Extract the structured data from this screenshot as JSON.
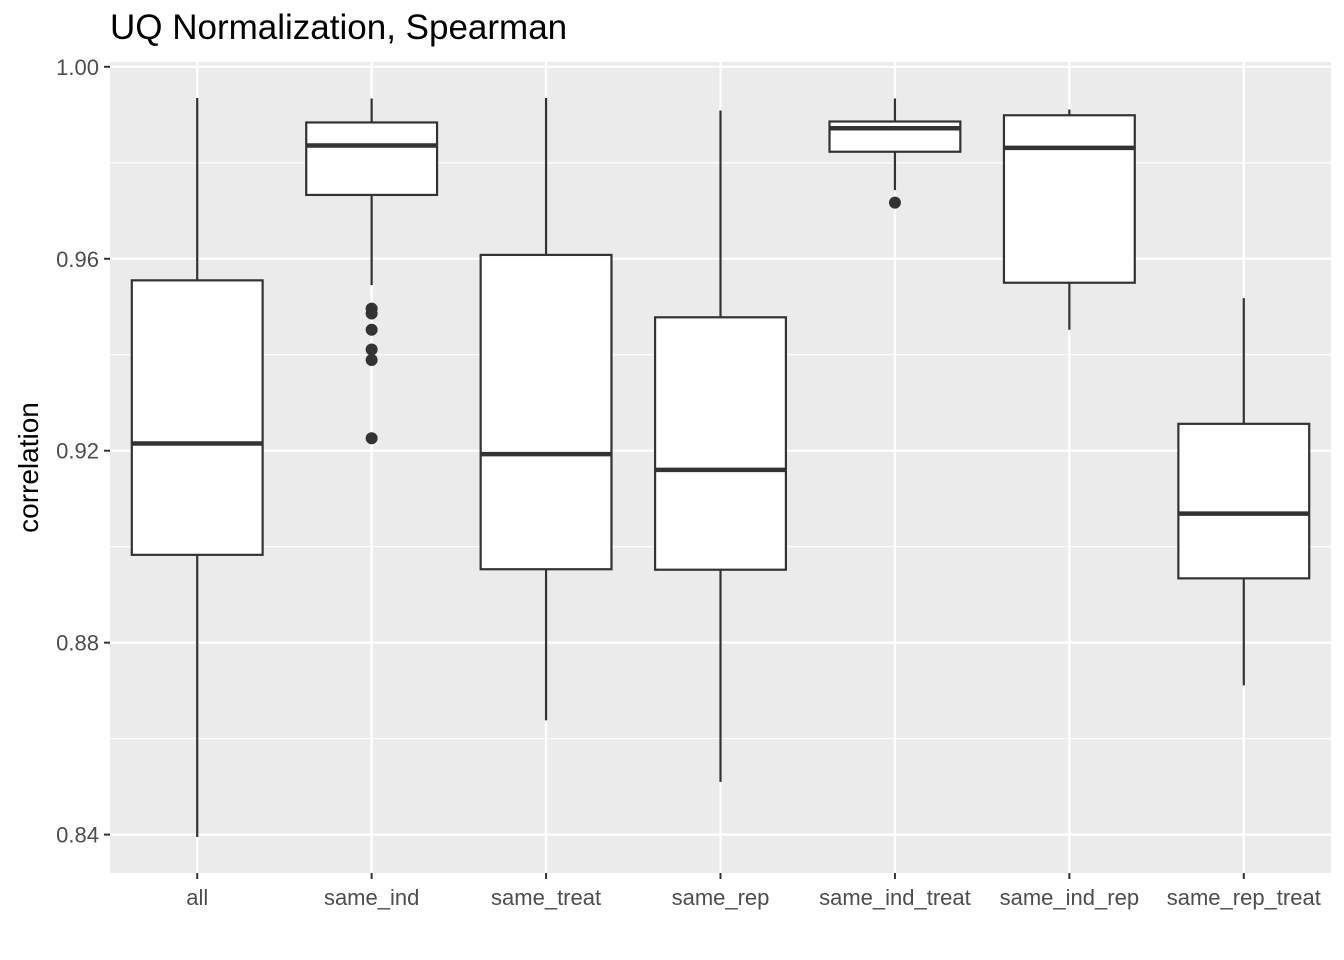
{
  "chart_data": {
    "type": "boxplot",
    "title": "UQ Normalization, Spearman",
    "xlabel": "",
    "ylabel": "correlation",
    "ylim": [
      0.832,
      1.001
    ],
    "y_ticks": [
      0.84,
      0.88,
      0.92,
      0.96,
      1.0
    ],
    "y_tick_labels": [
      "0.84",
      "0.88",
      "0.92",
      "0.96",
      "1.00"
    ],
    "grid": true,
    "background": "#ebebeb",
    "categories": [
      "all",
      "same_ind",
      "same_treat",
      "same_rep",
      "same_ind_treat",
      "same_ind_rep",
      "same_rep_treat"
    ],
    "boxes": [
      {
        "category": "all",
        "whisker_low": 0.8395,
        "q1": 0.8983,
        "median": 0.9215,
        "q3": 0.9555,
        "whisker_high": 0.9935,
        "outliers": []
      },
      {
        "category": "same_ind",
        "whisker_low": 0.9545,
        "q1": 0.9733,
        "median": 0.9836,
        "q3": 0.9884,
        "whisker_high": 0.9934,
        "outliers": [
          0.9496,
          0.9486,
          0.9452,
          0.9411,
          0.9389,
          0.9226
        ]
      },
      {
        "category": "same_treat",
        "whisker_low": 0.8638,
        "q1": 0.8953,
        "median": 0.9193,
        "q3": 0.9608,
        "whisker_high": 0.9935,
        "outliers": []
      },
      {
        "category": "same_rep",
        "whisker_low": 0.851,
        "q1": 0.8952,
        "median": 0.916,
        "q3": 0.9478,
        "whisker_high": 0.9909,
        "outliers": []
      },
      {
        "category": "same_ind_treat",
        "whisker_low": 0.9743,
        "q1": 0.9823,
        "median": 0.9872,
        "q3": 0.9886,
        "whisker_high": 0.9934,
        "outliers": [
          0.9717
        ]
      },
      {
        "category": "same_ind_rep",
        "whisker_low": 0.9452,
        "q1": 0.955,
        "median": 0.9831,
        "q3": 0.9899,
        "whisker_high": 0.9911,
        "outliers": []
      },
      {
        "category": "same_rep_treat",
        "whisker_low": 0.8711,
        "q1": 0.8934,
        "median": 0.9069,
        "q3": 0.9256,
        "whisker_high": 0.9518,
        "outliers": []
      }
    ]
  }
}
